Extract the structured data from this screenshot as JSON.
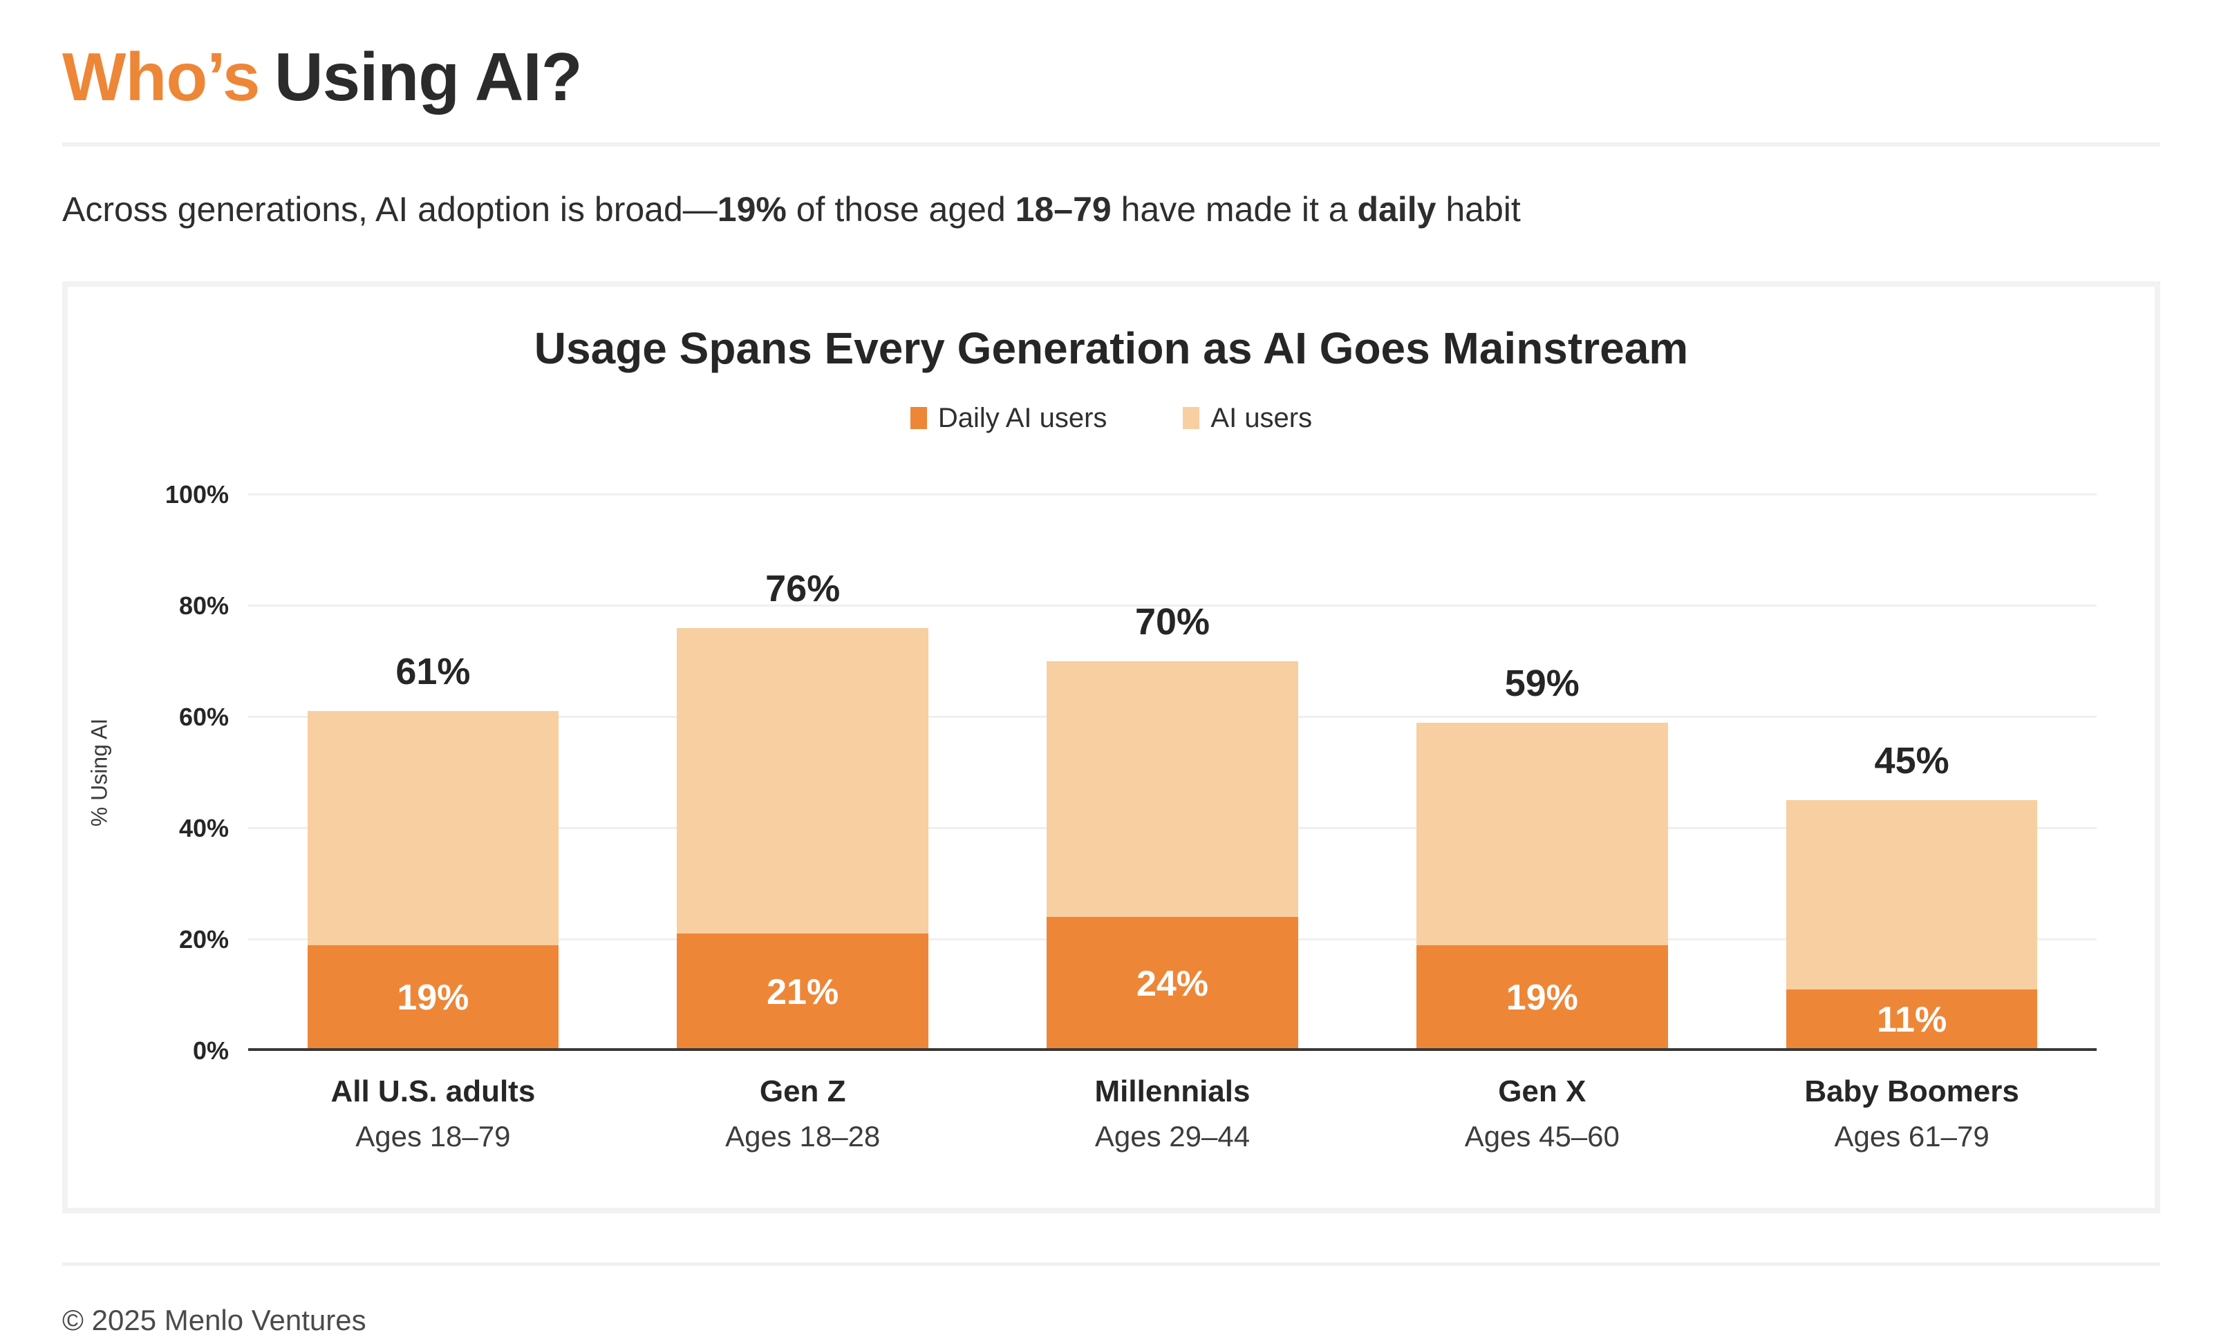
{
  "header": {
    "title_accent": "Who’s",
    "title_rest": "Using AI?"
  },
  "subtitle": {
    "parts": [
      {
        "text": "Across generations, AI adoption is broad—",
        "bold": false
      },
      {
        "text": "19%",
        "bold": true
      },
      {
        "text": " of those aged ",
        "bold": false
      },
      {
        "text": "18–79",
        "bold": true
      },
      {
        "text": " have made it a ",
        "bold": false
      },
      {
        "text": "daily",
        "bold": true
      },
      {
        "text": " habit",
        "bold": false
      }
    ]
  },
  "chart_data": {
    "type": "bar",
    "stacked": true,
    "title": "Usage Spans Every Generation as AI Goes Mainstream",
    "ylabel": "% Using AI",
    "ylim": [
      0,
      100
    ],
    "yticks": [
      0,
      20,
      40,
      60,
      80,
      100
    ],
    "ytick_suffix": "%",
    "grid": "horizontal",
    "legend_position": "top",
    "categories": [
      "All U.S. adults",
      "Gen Z",
      "Millennials",
      "Gen X",
      "Baby Boomers"
    ],
    "category_sublabels": [
      "Ages 18–79",
      "Ages 18–28",
      "Ages 29–44",
      "Ages 45–60",
      "Ages 61–79"
    ],
    "series": [
      {
        "name": "Daily AI users",
        "color": "#EE8637",
        "values": [
          19,
          21,
          24,
          19,
          11
        ]
      },
      {
        "name": "AI users",
        "color": "#F8CFA0",
        "values": [
          61,
          76,
          70,
          59,
          45
        ]
      }
    ],
    "total_labels": [
      "61%",
      "76%",
      "70%",
      "59%",
      "45%"
    ],
    "daily_labels": [
      "19%",
      "21%",
      "24%",
      "19%",
      "11%"
    ]
  },
  "colors": {
    "accent_orange": "#EE8637",
    "light_orange": "#F8CFA0",
    "dark_text": "#2b2b2b",
    "gridline": "#efefef",
    "axis_line": "#383838",
    "card_border": "#f2f2f2"
  },
  "footer": {
    "text": "© 2025 Menlo Ventures"
  }
}
